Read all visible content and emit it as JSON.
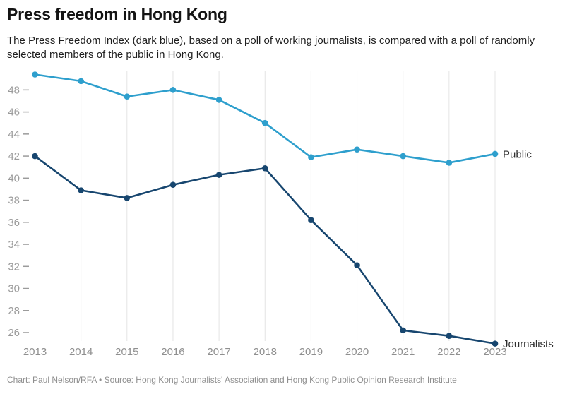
{
  "header": {
    "title": "Press freedom in Hong Kong",
    "subtitle_line1": "The Press Freedom Index (dark blue), based on a poll of working journalists, is compared with a poll of randomly",
    "subtitle_line2": "selected members of the public in Hong Kong."
  },
  "chart_data": {
    "type": "line",
    "title": "Press freedom in Hong Kong",
    "x": [
      2013,
      2014,
      2015,
      2016,
      2017,
      2018,
      2019,
      2020,
      2021,
      2022,
      2023
    ],
    "series": [
      {
        "name": "Public",
        "color": "#2e9fcd",
        "values": [
          49.4,
          48.8,
          47.4,
          48.0,
          47.1,
          45.0,
          41.9,
          42.6,
          42.0,
          41.4,
          42.2
        ]
      },
      {
        "name": "Journalists",
        "color": "#17466f",
        "values": [
          42.0,
          38.9,
          38.2,
          39.4,
          40.3,
          40.9,
          36.2,
          32.1,
          26.2,
          25.7,
          25.0
        ]
      }
    ],
    "y_ticks": [
      48,
      46,
      44,
      42,
      40,
      38,
      36,
      34,
      32,
      30,
      28,
      26
    ],
    "ylim": [
      24.5,
      49.8
    ],
    "xlabel": "",
    "ylabel": "",
    "grid": "vertical-only",
    "legend_position": "end-of-line",
    "grid_color": "#e4e4e4",
    "tick_label_color": "#9b9b9b",
    "x_label_color": "#8f8f8f",
    "series_label_color": "#2e2e2e"
  },
  "footer": {
    "text": "Chart: Paul Nelson/RFA • Source: Hong Kong Journalists' Association and Hong Kong Public Opinion Research Institute"
  }
}
